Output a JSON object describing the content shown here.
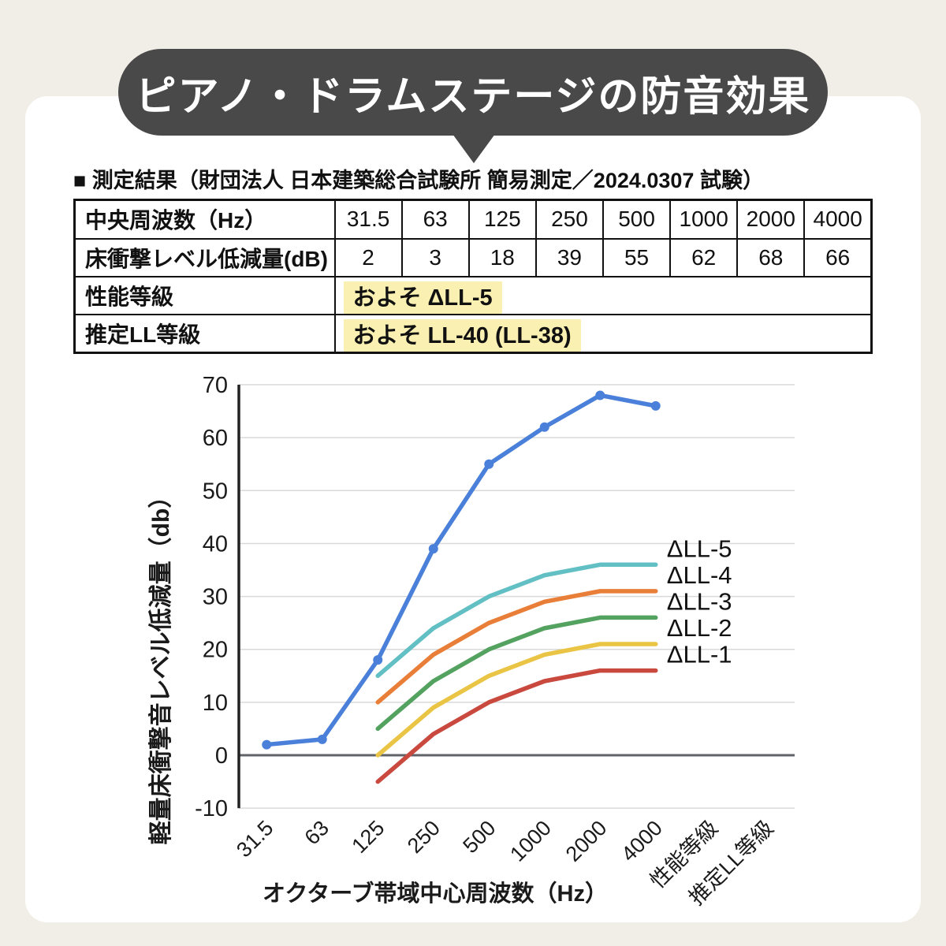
{
  "header": {
    "title": "ピアノ・ドラムステージの防音効果",
    "subtitle": "■ 測定結果（財団法人 日本建築総合試験所 簡易測定／2024.0307 試験）"
  },
  "table": {
    "row1": {
      "label": "中央周波数（Hz）",
      "values": [
        "31.5",
        "63",
        "125",
        "250",
        "500",
        "1000",
        "2000",
        "4000"
      ]
    },
    "row2": {
      "label": "床衝撃レベル低減量(dB)",
      "values": [
        "2",
        "3",
        "18",
        "39",
        "55",
        "62",
        "68",
        "66"
      ]
    },
    "row3": {
      "label": "性能等級",
      "value": "およそ ΔLL-5"
    },
    "row4": {
      "label": "推定LL等級",
      "value": "およそ LL-40 (LL-38)"
    }
  },
  "colors": {
    "background": "#f1ede7",
    "card": "#ffffff",
    "banner": "#494949",
    "banner_text": "#ffffff",
    "highlight": "#faf0b2",
    "table_border": "#111111",
    "grid_line": "#d9d9d9",
    "zero_line": "#5f6368",
    "axis_line": "#222222"
  },
  "chart_data": {
    "type": "line",
    "title": "",
    "xlabel": "オクターブ帯域中心周波数（Hz）",
    "ylabel": "軽量床衝撃音レベル低減量（db）",
    "ylim": [
      -10,
      70
    ],
    "ytick_step": 10,
    "grid": true,
    "legend_position": "right-of-curves",
    "categories": [
      "31.5",
      "63",
      "125",
      "250",
      "500",
      "1000",
      "2000",
      "4000",
      "性能等級",
      "推定LL等級"
    ],
    "series": [
      {
        "id": "measured",
        "name": "",
        "color": "#4a80d9",
        "marker": true,
        "show_label": false,
        "x": [
          "31.5",
          "63",
          "125",
          "250",
          "500",
          "1000",
          "2000",
          "4000"
        ],
        "values": [
          2,
          3,
          18,
          39,
          55,
          62,
          68,
          66
        ]
      },
      {
        "id": "dll5",
        "name": "ΔLL-5",
        "color": "#62bfc3",
        "marker": false,
        "show_label": true,
        "x": [
          "125",
          "250",
          "500",
          "1000",
          "2000",
          "4000"
        ],
        "values": [
          15,
          24,
          30,
          34,
          36,
          36
        ]
      },
      {
        "id": "dll4",
        "name": "ΔLL-4",
        "color": "#e87e38",
        "marker": false,
        "show_label": true,
        "x": [
          "125",
          "250",
          "500",
          "1000",
          "2000",
          "4000"
        ],
        "values": [
          10,
          19,
          25,
          29,
          31,
          31
        ]
      },
      {
        "id": "dll3",
        "name": "ΔLL-3",
        "color": "#53a25f",
        "marker": false,
        "show_label": true,
        "x": [
          "125",
          "250",
          "500",
          "1000",
          "2000",
          "4000"
        ],
        "values": [
          5,
          14,
          20,
          24,
          26,
          26
        ]
      },
      {
        "id": "dll2",
        "name": "ΔLL-2",
        "color": "#eac545",
        "marker": false,
        "show_label": true,
        "x": [
          "125",
          "250",
          "500",
          "1000",
          "2000",
          "4000"
        ],
        "values": [
          0,
          9,
          15,
          19,
          21,
          21
        ]
      },
      {
        "id": "dll1",
        "name": "ΔLL-1",
        "color": "#c9493f",
        "marker": false,
        "show_label": true,
        "x": [
          "125",
          "250",
          "500",
          "1000",
          "2000",
          "4000"
        ],
        "values": [
          -5,
          4,
          10,
          14,
          16,
          16
        ]
      }
    ]
  }
}
